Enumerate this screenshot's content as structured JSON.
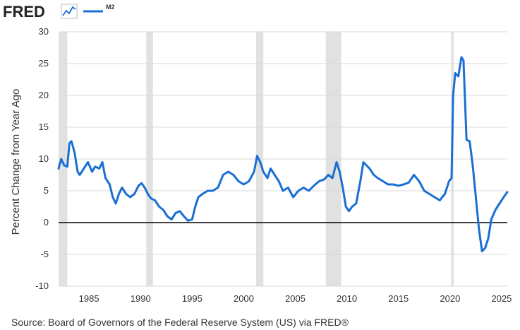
{
  "brand": {
    "logo_text": "FRED",
    "logo_icon": "chart-line-icon"
  },
  "colors": {
    "series": "#1a6fd3",
    "recession": "#e1e1e1",
    "grid": "#d9d9d9",
    "zero_line": "#000000",
    "text": "#333333"
  },
  "source": "Source: Board of Governors of the Federal Reserve System (US) via FRED®",
  "chart_data": {
    "type": "line",
    "title": "",
    "xlabel": "",
    "ylabel": "Percent Change from Year Ago",
    "xlim": [
      1982.05,
      2025.55
    ],
    "ylim": [
      -10,
      30
    ],
    "yticks": [
      -10,
      -5,
      0,
      5,
      10,
      15,
      20,
      25,
      30
    ],
    "ytick_labels": [
      "-10",
      "-5",
      "0",
      "5",
      "10",
      "15",
      "20",
      "25",
      "30"
    ],
    "xticks": [
      1985,
      1990,
      1995,
      2000,
      2005,
      2010,
      2015,
      2020,
      2025
    ],
    "xtick_labels": [
      "1985",
      "1990",
      "1995",
      "2000",
      "2005",
      "2010",
      "2015",
      "2020",
      "2025"
    ],
    "grid": true,
    "legend": [
      {
        "name": "M2",
        "position": "top-left"
      }
    ],
    "recessions": [
      [
        1982.05,
        1982.9
      ],
      [
        1990.55,
        1991.2
      ],
      [
        2001.2,
        2001.9
      ],
      [
        2007.95,
        2009.45
      ],
      [
        2020.1,
        2020.35
      ]
    ],
    "series": [
      {
        "name": "M2",
        "x": [
          1982.05,
          1982.3,
          1982.6,
          1982.9,
          1983.1,
          1983.3,
          1983.6,
          1983.9,
          1984.1,
          1984.5,
          1984.9,
          1985.3,
          1985.6,
          1986.0,
          1986.3,
          1986.6,
          1987.0,
          1987.3,
          1987.6,
          1987.9,
          1988.2,
          1988.6,
          1989.0,
          1989.4,
          1989.8,
          1990.1,
          1990.4,
          1990.7,
          1991.0,
          1991.4,
          1991.8,
          1992.2,
          1992.6,
          1993.0,
          1993.4,
          1993.8,
          1994.2,
          1994.6,
          1995.0,
          1995.3,
          1995.6,
          1996.0,
          1996.5,
          1997.0,
          1997.5,
          1998.0,
          1998.5,
          1999.0,
          1999.5,
          2000.0,
          2000.5,
          2001.0,
          2001.3,
          2001.6,
          2001.9,
          2002.3,
          2002.6,
          2003.0,
          2003.4,
          2003.8,
          2004.3,
          2004.8,
          2005.3,
          2005.8,
          2006.3,
          2006.8,
          2007.3,
          2007.8,
          2008.2,
          2008.6,
          2009.0,
          2009.3,
          2009.6,
          2009.9,
          2010.2,
          2010.5,
          2010.9,
          2011.3,
          2011.6,
          2011.9,
          2012.2,
          2012.6,
          2013.0,
          2013.5,
          2014.0,
          2014.5,
          2015.0,
          2015.5,
          2016.0,
          2016.5,
          2017.0,
          2017.5,
          2018.0,
          2018.5,
          2019.0,
          2019.5,
          2019.9,
          2020.15,
          2020.3,
          2020.5,
          2020.8,
          2021.1,
          2021.3,
          2021.6,
          2021.9,
          2022.2,
          2022.5,
          2022.8,
          2023.1,
          2023.4,
          2023.7,
          2024.0,
          2024.4,
          2024.8,
          2025.2,
          2025.55
        ],
        "values": [
          8.5,
          10.0,
          9.0,
          8.8,
          12.5,
          12.8,
          11.0,
          8.0,
          7.5,
          8.5,
          9.5,
          8.0,
          8.8,
          8.5,
          9.5,
          7.0,
          6.0,
          4.0,
          3.0,
          4.5,
          5.5,
          4.5,
          4.0,
          4.5,
          5.8,
          6.2,
          5.5,
          4.5,
          3.8,
          3.5,
          2.5,
          2.0,
          1.0,
          0.5,
          1.5,
          1.8,
          1.0,
          0.3,
          0.5,
          2.5,
          4.0,
          4.5,
          5.0,
          5.0,
          5.5,
          7.5,
          8.0,
          7.5,
          6.5,
          6.0,
          6.5,
          8.0,
          10.5,
          9.5,
          8.0,
          7.0,
          8.5,
          7.5,
          6.5,
          5.0,
          5.5,
          4.0,
          5.0,
          5.5,
          5.0,
          5.8,
          6.5,
          6.8,
          7.5,
          7.0,
          9.5,
          8.0,
          5.5,
          2.5,
          1.8,
          2.5,
          3.0,
          6.5,
          9.5,
          9.0,
          8.5,
          7.5,
          7.0,
          6.5,
          6.0,
          6.0,
          5.8,
          6.0,
          6.3,
          7.5,
          6.5,
          5.0,
          4.5,
          4.0,
          3.5,
          4.5,
          6.5,
          7.0,
          20.0,
          23.5,
          23.0,
          26.0,
          25.5,
          13.0,
          12.8,
          9.0,
          4.0,
          -1.0,
          -4.5,
          -4.0,
          -2.5,
          0.5,
          2.0,
          3.0,
          4.0,
          4.8
        ]
      }
    ]
  }
}
